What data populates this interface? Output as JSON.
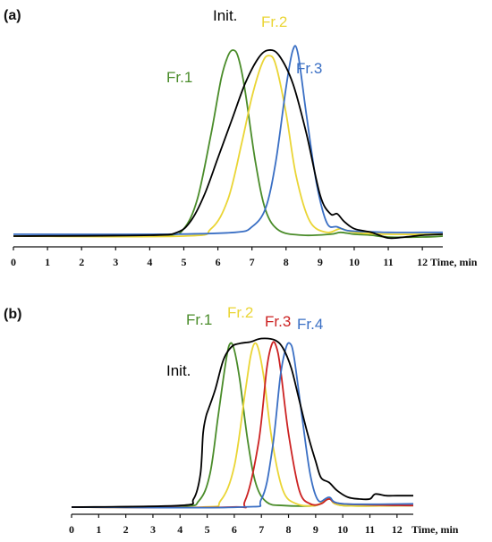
{
  "chart_data": [
    {
      "type": "line",
      "panel_label": "(a)",
      "xlabel": "Time, min",
      "ylabel": "",
      "xlim": [
        0,
        12.6
      ],
      "ylim": [
        -0.02,
        1.0
      ],
      "grid": false,
      "x_ticks": [
        "0",
        "1",
        "2",
        "3",
        "4",
        "5",
        "6",
        "7",
        "8",
        "9",
        "10",
        "11",
        "12"
      ],
      "series": [
        {
          "name": "Fr.1",
          "color": "#4a8c2a",
          "x": [
            0,
            2.4,
            4.5,
            5.0,
            5.4,
            5.8,
            6.1,
            6.3,
            6.45,
            6.6,
            6.8,
            7.1,
            7.4,
            7.8,
            8.5,
            9.3,
            9.6,
            10.0,
            10.5,
            11.0,
            12.0,
            12.6
          ],
          "y": [
            0.0,
            0.0,
            0.005,
            0.04,
            0.2,
            0.55,
            0.85,
            0.97,
            1.0,
            0.96,
            0.78,
            0.4,
            0.14,
            0.03,
            0.005,
            0.01,
            0.02,
            0.01,
            0.005,
            -0.005,
            -0.005,
            0.0
          ]
        },
        {
          "name": "Fr.2",
          "color": "#ead535",
          "x": [
            0,
            5.0,
            5.8,
            6.3,
            6.7,
            7.0,
            7.3,
            7.5,
            7.7,
            8.0,
            8.3,
            8.7,
            9.2,
            9.6,
            10.0,
            11.0,
            12.6
          ],
          "y": [
            0.0,
            0.0,
            0.04,
            0.2,
            0.5,
            0.75,
            0.93,
            0.97,
            0.92,
            0.66,
            0.32,
            0.08,
            0.02,
            0.04,
            0.02,
            0.01,
            0.01
          ]
        },
        {
          "name": "Fr.3",
          "color": "#3a6fc4",
          "x": [
            0,
            4.5,
            6.5,
            7.0,
            7.4,
            7.7,
            8.0,
            8.2,
            8.35,
            8.6,
            8.9,
            9.2,
            9.5,
            9.8,
            10.2,
            11.0,
            12.0,
            12.6
          ],
          "y": [
            0.01,
            0.01,
            0.02,
            0.05,
            0.15,
            0.4,
            0.8,
            1.0,
            0.98,
            0.65,
            0.28,
            0.07,
            0.05,
            0.03,
            0.025,
            0.02,
            0.02,
            0.02
          ]
        },
        {
          "name": "Init.",
          "color": "#000000",
          "x": [
            0,
            4.0,
            4.8,
            5.2,
            5.6,
            6.0,
            6.4,
            6.8,
            7.2,
            7.5,
            7.8,
            8.2,
            8.6,
            9.0,
            9.3,
            9.5,
            9.7,
            10.0,
            10.5,
            11.0,
            11.5,
            12.0,
            12.6
          ],
          "y": [
            0.0,
            0.005,
            0.02,
            0.08,
            0.22,
            0.42,
            0.62,
            0.82,
            0.96,
            1.0,
            0.97,
            0.82,
            0.55,
            0.22,
            0.12,
            0.12,
            0.08,
            0.04,
            0.02,
            -0.01,
            -0.005,
            0.005,
            0.01
          ]
        }
      ]
    },
    {
      "type": "line",
      "panel_label": "(b)",
      "xlabel": "Time, min",
      "ylabel": "",
      "xlim": [
        0,
        12.6
      ],
      "ylim": [
        -0.02,
        1.0
      ],
      "grid": false,
      "x_ticks": [
        "0",
        "1",
        "2",
        "3",
        "4",
        "5",
        "6",
        "7",
        "8",
        "9",
        "10",
        "11",
        "12"
      ],
      "series": [
        {
          "name": "Fr.1",
          "color": "#4a8c2a",
          "x": [
            0,
            4.0,
            4.7,
            5.1,
            5.4,
            5.7,
            5.85,
            6.0,
            6.2,
            6.5,
            6.8,
            7.2,
            7.8,
            9.0,
            9.5,
            10.0,
            12.6
          ],
          "y": [
            0.0,
            0.005,
            0.04,
            0.2,
            0.55,
            0.9,
            1.0,
            0.96,
            0.78,
            0.4,
            0.14,
            0.03,
            0.01,
            0.01,
            0.05,
            0.01,
            0.01
          ]
        },
        {
          "name": "Fr.2",
          "color": "#ead535",
          "x": [
            0,
            4.8,
            5.5,
            6.0,
            6.4,
            6.6,
            6.75,
            6.9,
            7.1,
            7.4,
            7.8,
            8.3,
            9.0,
            9.5,
            10.0,
            12.6
          ],
          "y": [
            0.0,
            0.0,
            0.04,
            0.25,
            0.7,
            0.92,
            1.0,
            0.96,
            0.78,
            0.4,
            0.1,
            0.02,
            0.01,
            0.05,
            0.01,
            0.01
          ]
        },
        {
          "name": "Fr.3",
          "color": "#cc2222",
          "x": [
            0,
            5.8,
            6.4,
            6.9,
            7.2,
            7.4,
            7.55,
            7.7,
            8.0,
            8.4,
            8.8,
            9.2,
            9.5,
            10.0,
            12.6
          ],
          "y": [
            0.0,
            0.0,
            0.04,
            0.4,
            0.85,
            1.0,
            0.98,
            0.85,
            0.45,
            0.1,
            0.02,
            0.02,
            0.05,
            0.02,
            0.01
          ]
        },
        {
          "name": "Fr.4",
          "color": "#3a6fc4",
          "x": [
            0,
            6.2,
            7.0,
            7.4,
            7.7,
            7.9,
            8.05,
            8.2,
            8.5,
            8.8,
            9.1,
            9.5,
            10.0,
            12.6
          ],
          "y": [
            0.0,
            0.0,
            0.05,
            0.35,
            0.8,
            0.97,
            1.0,
            0.92,
            0.55,
            0.2,
            0.04,
            0.06,
            0.02,
            0.02
          ]
        },
        {
          "name": "Init.",
          "color": "#000000",
          "x": [
            0,
            4.0,
            4.5,
            4.75,
            4.85,
            4.95,
            5.05,
            5.3,
            5.6,
            5.9,
            6.2,
            6.6,
            7.0,
            7.5,
            7.8,
            8.1,
            8.4,
            8.7,
            9.0,
            9.2,
            9.5,
            9.8,
            10.2,
            10.6,
            11.0,
            11.2,
            11.6,
            12.0,
            12.6
          ],
          "y": [
            0.0,
            0.01,
            0.05,
            0.2,
            0.45,
            0.55,
            0.6,
            0.72,
            0.9,
            0.98,
            1.0,
            1.01,
            1.03,
            1.02,
            0.97,
            0.85,
            0.65,
            0.45,
            0.28,
            0.18,
            0.15,
            0.1,
            0.06,
            0.05,
            0.05,
            0.08,
            0.07,
            0.07,
            0.07
          ]
        }
      ]
    }
  ]
}
